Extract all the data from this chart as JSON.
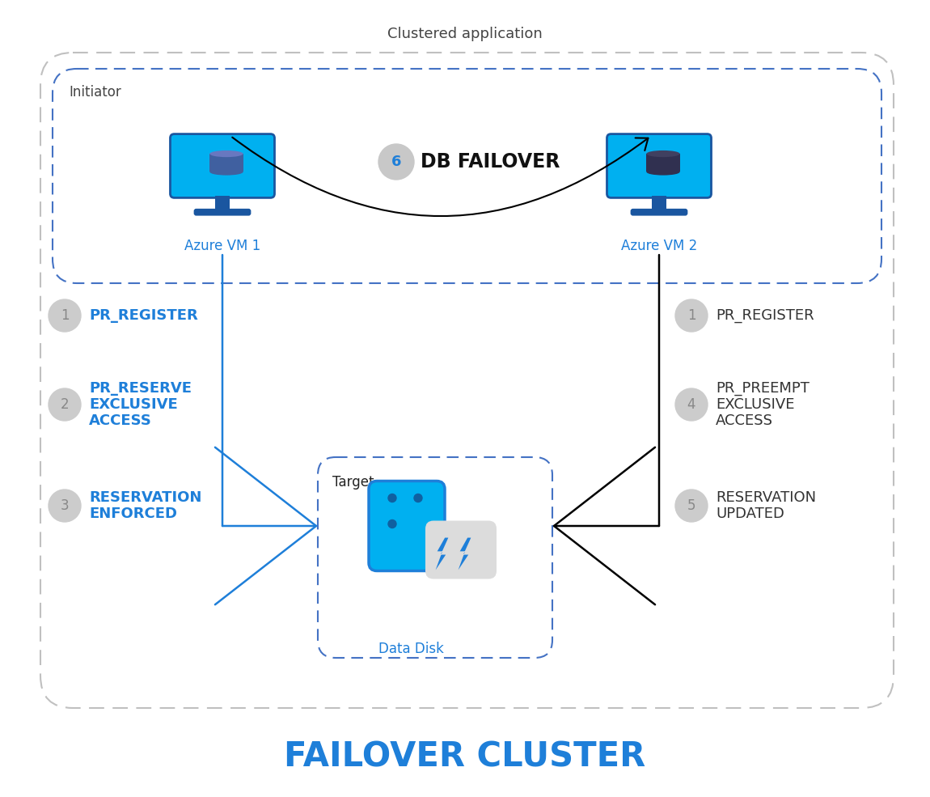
{
  "title": "FAILOVER CLUSTER",
  "title_color": "#1E7FD9",
  "title_fontsize": 30,
  "clustered_app_label": "Clustered application",
  "initiator_label": "Initiator",
  "target_label": "Target",
  "vm1_label": "Azure VM 1",
  "vm2_label": "Azure VM 2",
  "disk_label": "Data Disk",
  "failover_label": "DB FAILOVER",
  "blue_color": "#1E7FD9",
  "dark_blue": "#1A56A0",
  "light_blue": "#00B0F0",
  "dashed_blue": "#4472C4",
  "vm_bg": "#00B0F0",
  "vm_border": "#1A56A0",
  "db_color": "#4060A0",
  "disk_main_color": "#00B0F0",
  "disk_border_color": "#1E7FD9",
  "lightning_color": "#1E7FD9",
  "left_steps": [
    {
      "num": "1",
      "text": "PR_REGISTER",
      "lines": [
        "PR_REGISTER"
      ],
      "color": "#1E7FD9"
    },
    {
      "num": "2",
      "text": "PR_RESERVE EXCLUSIVE ACCESS",
      "lines": [
        "PR_RESERVE",
        "EXCLUSIVE",
        "ACCESS"
      ],
      "color": "#1E7FD9"
    },
    {
      "num": "3",
      "text": "RESERVATION ENFORCED",
      "lines": [
        "RESERVATION",
        "ENFORCED"
      ],
      "color": "#1E7FD9"
    }
  ],
  "right_steps": [
    {
      "num": "1",
      "text": "PR_REGISTER",
      "lines": [
        "PR_REGISTER"
      ],
      "color": "#333333"
    },
    {
      "num": "4",
      "text": "PR_PREEMPT EXCLUSIVE ACCESS",
      "lines": [
        "PR_PREEMPT",
        "EXCLUSIVE",
        "ACCESS"
      ],
      "color": "#333333"
    },
    {
      "num": "5",
      "text": "RESERVATION UPDATED",
      "lines": [
        "RESERVATION",
        "UPDATED"
      ],
      "color": "#333333"
    }
  ]
}
